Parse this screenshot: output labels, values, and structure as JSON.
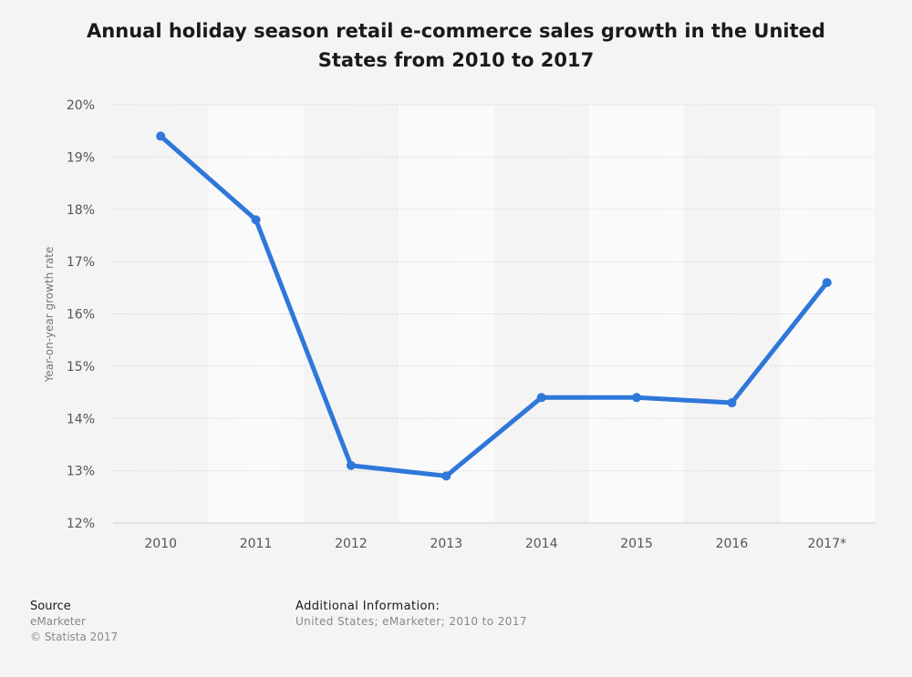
{
  "chart_data": {
    "type": "line",
    "title": "Annual holiday season retail e-commerce sales growth in the United States from 2010 to 2017",
    "ylabel": "Year-on-year growth rate",
    "xlabel": "",
    "categories": [
      "2010",
      "2011",
      "2012",
      "2013",
      "2014",
      "2015",
      "2016",
      "2017*"
    ],
    "series": [
      {
        "values": [
          19.4,
          17.8,
          13.1,
          12.9,
          14.4,
          14.4,
          14.3,
          16.6
        ]
      }
    ],
    "ylim": [
      12,
      20
    ],
    "yticks": [
      12,
      13,
      14,
      15,
      16,
      17,
      18,
      19,
      20
    ],
    "ytick_suffix": "%",
    "grid": true,
    "line_color": "#2f77d9"
  },
  "footer": {
    "source_heading": "Source",
    "source_name": "eMarketer",
    "copyright": "© Statista 2017",
    "info_heading": "Additional Information:",
    "info_text": "United States; eMarketer; 2010 to 2017"
  }
}
